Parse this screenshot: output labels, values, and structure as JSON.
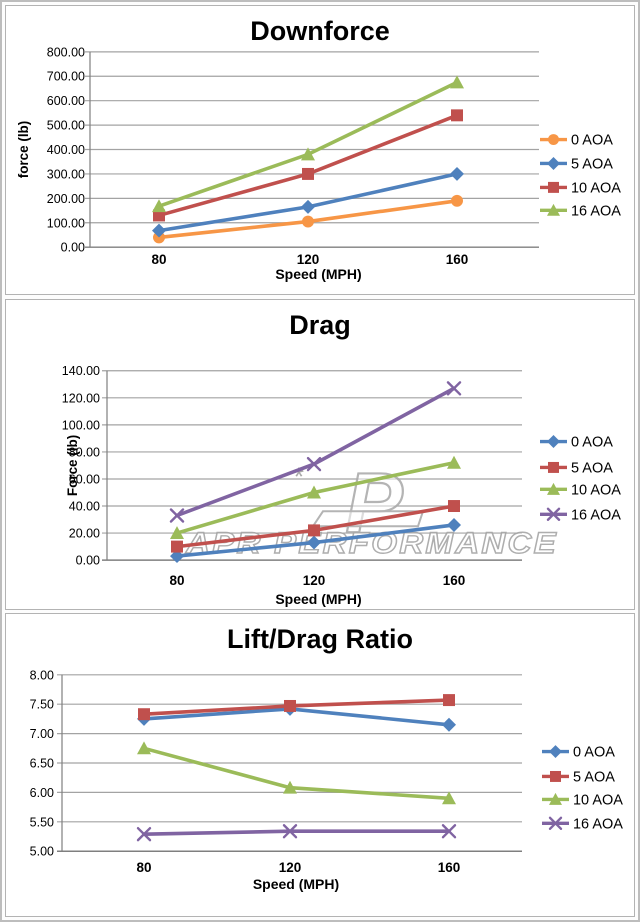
{
  "page": {
    "background": "#ffffff",
    "frame_color": "#bdbdbd",
    "panel_border_color": "#b3b3b3"
  },
  "colors": {
    "orange": "#F79646",
    "blue": "#4F81BD",
    "red": "#C0504D",
    "green": "#9BBB59",
    "purple": "#8064A2",
    "gridline": "#A3A3A3",
    "axis": "#7F7F7F",
    "text": "#000000",
    "watermark": "#ACACAC"
  },
  "watermark": {
    "text": "APR PERFORMANCE",
    "logo": "apr-logo"
  },
  "chart_data": [
    {
      "type": "line",
      "title": "Downforce",
      "xlabel": "Speed (MPH)",
      "ylabel": "force (lb)",
      "categories": [
        "80",
        "120",
        "160"
      ],
      "ylim": [
        0,
        800
      ],
      "ytick_step": 100,
      "ytick_format": "two-decimals",
      "grid": true,
      "legend_position": "right",
      "series": [
        {
          "name": "0 AOA",
          "color": "#F79646",
          "marker": "circle",
          "values": [
            40,
            105,
            190
          ]
        },
        {
          "name": "5 AOA",
          "color": "#4F81BD",
          "marker": "diamond",
          "values": [
            68,
            165,
            300
          ]
        },
        {
          "name": "10 AOA",
          "color": "#C0504D",
          "marker": "square",
          "values": [
            130,
            300,
            540
          ]
        },
        {
          "name": "16 AOA",
          "color": "#9BBB59",
          "marker": "triangle",
          "values": [
            168,
            380,
            675
          ]
        }
      ]
    },
    {
      "type": "line",
      "title": "Drag",
      "xlabel": "Speed (MPH)",
      "ylabel": "Force (lb)",
      "categories": [
        "80",
        "120",
        "160"
      ],
      "ylim": [
        0,
        140
      ],
      "ytick_step": 20,
      "ytick_format": "two-decimals",
      "grid": true,
      "legend_position": "right",
      "watermark": "APR PERFORMANCE",
      "series": [
        {
          "name": "0 AOA",
          "color": "#4F81BD",
          "marker": "diamond",
          "values": [
            3,
            13,
            26
          ]
        },
        {
          "name": "5 AOA",
          "color": "#C0504D",
          "marker": "square",
          "values": [
            10,
            22,
            40
          ]
        },
        {
          "name": "10 AOA",
          "color": "#9BBB59",
          "marker": "triangle",
          "values": [
            20,
            50,
            72
          ]
        },
        {
          "name": "16 AOA",
          "color": "#8064A2",
          "marker": "x",
          "values": [
            33,
            71,
            127
          ]
        }
      ]
    },
    {
      "type": "line",
      "title": "Lift/Drag Ratio",
      "xlabel": "Speed (MPH)",
      "ylabel": "",
      "categories": [
        "80",
        "120",
        "160"
      ],
      "ylim": [
        5,
        8
      ],
      "ytick_step": 0.5,
      "ytick_format": "two-decimals",
      "grid": true,
      "legend_position": "right",
      "series": [
        {
          "name": "0 AOA",
          "color": "#4F81BD",
          "marker": "diamond",
          "values": [
            7.25,
            7.42,
            7.15
          ]
        },
        {
          "name": "5 AOA",
          "color": "#C0504D",
          "marker": "square",
          "values": [
            7.33,
            7.47,
            7.57
          ]
        },
        {
          "name": "10 AOA",
          "color": "#9BBB59",
          "marker": "triangle",
          "values": [
            6.75,
            6.08,
            5.9
          ]
        },
        {
          "name": "16 AOA",
          "color": "#8064A2",
          "marker": "x",
          "values": [
            5.29,
            5.34,
            5.34
          ]
        }
      ]
    }
  ]
}
